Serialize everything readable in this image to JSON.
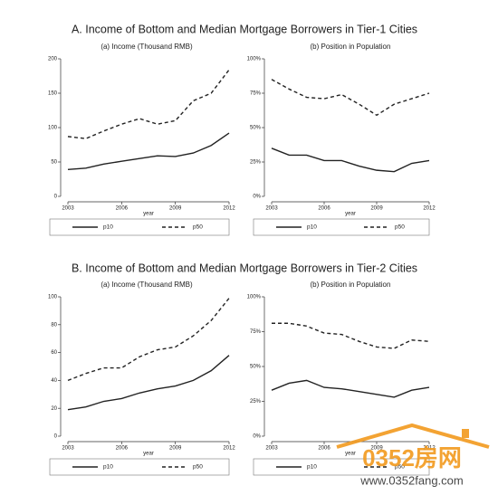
{
  "headings": [
    "A. Income of Bottom and Median Mortgage Borrowers in Tier-1 Cities",
    "B. Income of Bottom and Median Mortgage Borrowers in Tier-2 Cities"
  ],
  "watermark": {
    "brand": "0352房网",
    "url": "www.0352fang.com"
  },
  "chart_data": [
    {
      "type": "line",
      "title": "(a) Income (Thousand RMB)",
      "x_label": "year",
      "x": [
        2003,
        2004,
        2005,
        2006,
        2007,
        2008,
        2009,
        2010,
        2011,
        2012
      ],
      "xlim": [
        2003,
        2012
      ],
      "xticks": [
        2003,
        2006,
        2009,
        2012
      ],
      "ylim": [
        0,
        200
      ],
      "yticks": [
        0,
        50,
        100,
        150,
        200
      ],
      "series": [
        {
          "name": "p10",
          "color": "#222222",
          "style": "solid",
          "values": [
            39,
            41,
            47,
            51,
            55,
            59,
            58,
            63,
            74,
            92
          ]
        },
        {
          "name": "p50",
          "color": "#222222",
          "style": "dashed",
          "values": [
            87,
            84,
            95,
            105,
            113,
            105,
            110,
            139,
            150,
            184
          ]
        }
      ]
    },
    {
      "type": "line",
      "title": "(b) Position in Population",
      "x_label": "year",
      "x": [
        2003,
        2004,
        2005,
        2006,
        2007,
        2008,
        2009,
        2010,
        2011,
        2012
      ],
      "xlim": [
        2003,
        2012
      ],
      "xticks": [
        2003,
        2006,
        2009,
        2012
      ],
      "ylim": [
        0,
        100
      ],
      "yticks": [
        {
          "value": 0,
          "label": "0%"
        },
        {
          "value": 25,
          "label": "25%"
        },
        {
          "value": 50,
          "label": "50%"
        },
        {
          "value": 75,
          "label": "75%"
        },
        {
          "value": 100,
          "label": "100%"
        }
      ],
      "series": [
        {
          "name": "p10",
          "color": "#222222",
          "style": "solid",
          "values": [
            35,
            30,
            30,
            26,
            26,
            22,
            19,
            18,
            24,
            26
          ]
        },
        {
          "name": "p50",
          "color": "#222222",
          "style": "dashed",
          "values": [
            85,
            78,
            72,
            71,
            74,
            67,
            59,
            67,
            71,
            75
          ]
        }
      ]
    },
    {
      "type": "line",
      "title": "(a) Income (Thousand RMB)",
      "x_label": "year",
      "x": [
        2003,
        2004,
        2005,
        2006,
        2007,
        2008,
        2009,
        2010,
        2011,
        2012
      ],
      "xlim": [
        2003,
        2012
      ],
      "xticks": [
        2003,
        2006,
        2009,
        2012
      ],
      "ylim": [
        0,
        100
      ],
      "yticks": [
        0,
        20,
        40,
        60,
        80,
        100
      ],
      "series": [
        {
          "name": "p10",
          "color": "#222222",
          "style": "solid",
          "values": [
            19,
            21,
            25,
            27,
            31,
            34,
            36,
            40,
            47,
            58
          ]
        },
        {
          "name": "p50",
          "color": "#222222",
          "style": "dashed",
          "values": [
            40,
            45,
            49,
            49,
            57,
            62,
            64,
            72,
            83,
            99
          ]
        }
      ]
    },
    {
      "type": "line",
      "title": "(b) Position in Population",
      "x_label": "year",
      "x": [
        2003,
        2004,
        2005,
        2006,
        2007,
        2008,
        2009,
        2010,
        2011,
        2012
      ],
      "xlim": [
        2003,
        2012
      ],
      "xticks": [
        2003,
        2006,
        2009,
        2012
      ],
      "ylim": [
        0,
        100
      ],
      "yticks": [
        {
          "value": 0,
          "label": "0%"
        },
        {
          "value": 25,
          "label": "25%"
        },
        {
          "value": 50,
          "label": "50%"
        },
        {
          "value": 75,
          "label": "75%"
        },
        {
          "value": 100,
          "label": "100%"
        }
      ],
      "series": [
        {
          "name": "p10",
          "color": "#222222",
          "style": "solid",
          "values": [
            33,
            38,
            40,
            35,
            34,
            32,
            30,
            28,
            33,
            35
          ]
        },
        {
          "name": "p50",
          "color": "#222222",
          "style": "dashed",
          "values": [
            81,
            81,
            79,
            74,
            73,
            68,
            64,
            63,
            69,
            68
          ]
        }
      ]
    }
  ]
}
